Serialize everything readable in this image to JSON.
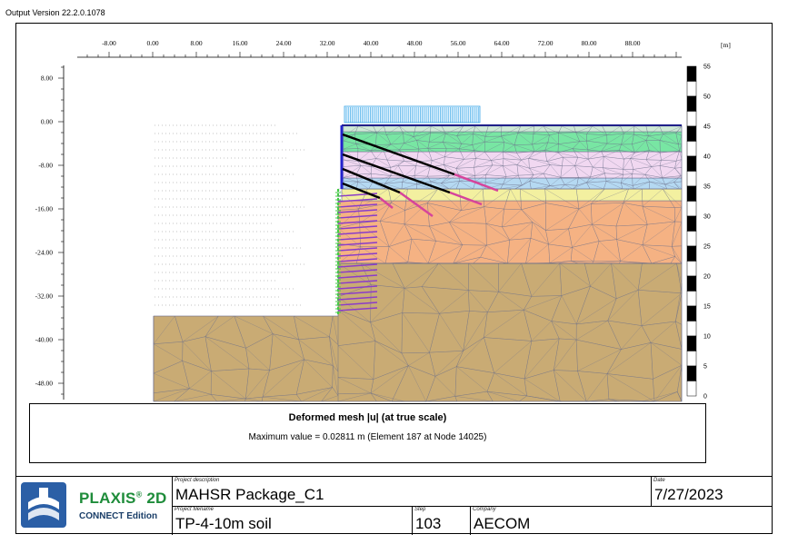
{
  "version": "Output Version 22.2.0.1078",
  "axis": {
    "unit": "[m]",
    "x_ticks": [
      "-8.00",
      "0.00",
      "8.00",
      "16.00",
      "24.00",
      "32.00",
      "40.00",
      "48.00",
      "56.00",
      "64.00",
      "72.00",
      "80.00",
      "88.00"
    ],
    "y_ticks": [
      "8.00",
      "0.00",
      "-8.00",
      "-16.00",
      "-24.00",
      "-32.00",
      "-40.00",
      "-48.00"
    ]
  },
  "scale_bar": {
    "labels": [
      "55",
      "50",
      "45",
      "40",
      "35",
      "30",
      "25",
      "20",
      "15",
      "10",
      "5",
      "0"
    ]
  },
  "caption": {
    "title": "Deformed mesh |u| (at true scale)",
    "max_value": "Maximum value = 0.02811 m (Element 187 at Node 14025)"
  },
  "info": {
    "logo_text": "PLAXIS",
    "logo_sup": "®",
    "logo_suffix": " 2D",
    "edition": "CONNECT Edition",
    "project_description_label": "Project description",
    "project_description": "MAHSR Package_C1",
    "project_filename_label": "Project filename",
    "project_filename": "TP-4-10m soil",
    "step_label": "Step",
    "step": "103",
    "company_label": "Company",
    "company": "AECOM",
    "date_label": "Date",
    "date": "7/27/2023"
  },
  "colors": {
    "soil_brown": "#c9ab74",
    "soil_orange": "#f5b283",
    "soil_yellow": "#f3f0a0",
    "soil_blue": "#b5d9f2",
    "soil_lilac": "#f1d8f1",
    "soil_green": "#78e6a3",
    "wall": "#2222cc",
    "anchor": "#000000",
    "grout": "#d6449b",
    "load": "#3aa6e6",
    "plaxis_green": "#1e8c3a"
  }
}
